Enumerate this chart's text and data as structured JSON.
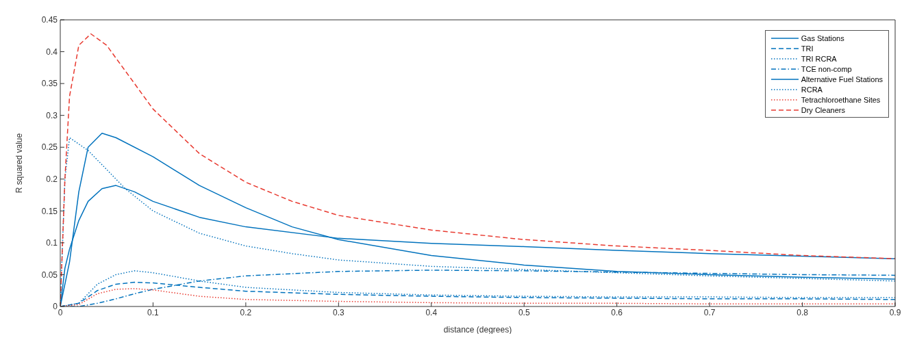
{
  "chart_data": {
    "type": "line",
    "xlabel": "distance (degrees)",
    "ylabel": "R squared value",
    "xlim": [
      0,
      0.9
    ],
    "xticks": [
      0,
      0.1,
      0.2,
      0.3,
      0.4,
      0.5,
      0.6,
      0.7,
      0.8,
      0.9
    ],
    "ylim": [
      0,
      0.45
    ],
    "yticks": [
      0,
      0.05,
      0.1,
      0.15,
      0.2,
      0.25,
      0.3,
      0.35,
      0.4,
      0.45
    ],
    "grid": false,
    "legend": "top right",
    "marker": "none",
    "series": [
      {
        "name": "Gas Stations",
        "color": "#0072bd",
        "line_style": "solid",
        "x": [
          0,
          0.01,
          0.02,
          0.03,
          0.045,
          0.06,
          0.1,
          0.15,
          0.2,
          0.25,
          0.3,
          0.4,
          0.5,
          0.6,
          0.7,
          0.8,
          0.9
        ],
        "values": [
          0,
          0.07,
          0.18,
          0.25,
          0.272,
          0.265,
          0.235,
          0.19,
          0.155,
          0.125,
          0.105,
          0.08,
          0.065,
          0.055,
          0.05,
          0.046,
          0.043
        ]
      },
      {
        "name": "TRI",
        "color": "#0072bd",
        "line_style": "dashed",
        "x": [
          0,
          0.02,
          0.04,
          0.06,
          0.08,
          0.1,
          0.15,
          0.2,
          0.3,
          0.4,
          0.5,
          0.6,
          0.7,
          0.8,
          0.9
        ],
        "values": [
          0,
          0.005,
          0.025,
          0.035,
          0.038,
          0.037,
          0.03,
          0.024,
          0.019,
          0.016,
          0.014,
          0.013,
          0.012,
          0.012,
          0.011
        ]
      },
      {
        "name": "TRI RCRA",
        "color": "#0072bd",
        "line_style": "dotted",
        "x": [
          0,
          0.02,
          0.04,
          0.06,
          0.08,
          0.1,
          0.15,
          0.2,
          0.3,
          0.4,
          0.5,
          0.6,
          0.7,
          0.8,
          0.9
        ],
        "values": [
          0,
          0.005,
          0.035,
          0.05,
          0.056,
          0.053,
          0.04,
          0.03,
          0.022,
          0.018,
          0.016,
          0.015,
          0.015,
          0.014,
          0.014
        ]
      },
      {
        "name": "TCE non-comp",
        "color": "#0072bd",
        "line_style": "dashdot",
        "x": [
          0,
          0.02,
          0.04,
          0.06,
          0.08,
          0.1,
          0.15,
          0.2,
          0.3,
          0.4,
          0.5,
          0.6,
          0.7,
          0.8,
          0.9
        ],
        "values": [
          0,
          0,
          0.005,
          0.012,
          0.02,
          0.027,
          0.04,
          0.048,
          0.055,
          0.057,
          0.056,
          0.054,
          0.052,
          0.05,
          0.049
        ]
      },
      {
        "name": "Alternative Fuel Stations",
        "color": "#0072bd",
        "line_style": "solid",
        "x": [
          0,
          0.005,
          0.01,
          0.02,
          0.03,
          0.045,
          0.06,
          0.08,
          0.1,
          0.15,
          0.2,
          0.3,
          0.4,
          0.5,
          0.6,
          0.7,
          0.8,
          0.9
        ],
        "values": [
          0,
          0.06,
          0.09,
          0.135,
          0.165,
          0.185,
          0.19,
          0.18,
          0.165,
          0.14,
          0.125,
          0.107,
          0.099,
          0.094,
          0.088,
          0.083,
          0.079,
          0.075
        ]
      },
      {
        "name": "RCRA",
        "color": "#0072bd",
        "line_style": "dotted",
        "x": [
          0,
          0.005,
          0.01,
          0.03,
          0.05,
          0.07,
          0.1,
          0.15,
          0.2,
          0.25,
          0.3,
          0.4,
          0.5,
          0.6,
          0.7,
          0.8,
          0.9
        ],
        "values": [
          0,
          0.2,
          0.265,
          0.245,
          0.215,
          0.185,
          0.15,
          0.115,
          0.095,
          0.083,
          0.073,
          0.063,
          0.058,
          0.053,
          0.048,
          0.044,
          0.04
        ]
      },
      {
        "name": "Tetrachloroethane Sites",
        "color": "#e8392f",
        "line_style": "dotted",
        "x": [
          0,
          0.02,
          0.04,
          0.06,
          0.08,
          0.1,
          0.15,
          0.2,
          0.3,
          0.4,
          0.5,
          0.6,
          0.7,
          0.8,
          0.9
        ],
        "values": [
          0,
          0.003,
          0.02,
          0.027,
          0.028,
          0.026,
          0.016,
          0.011,
          0.008,
          0.006,
          0.005,
          0.005,
          0.004,
          0.004,
          0.004
        ]
      },
      {
        "name": "Dry Cleaners",
        "color": "#e8392f",
        "line_style": "dashed",
        "x": [
          0,
          0.005,
          0.01,
          0.02,
          0.033,
          0.05,
          0.07,
          0.1,
          0.15,
          0.2,
          0.25,
          0.3,
          0.4,
          0.5,
          0.6,
          0.7,
          0.8,
          0.9
        ],
        "values": [
          0,
          0.2,
          0.33,
          0.41,
          0.428,
          0.41,
          0.37,
          0.31,
          0.24,
          0.195,
          0.165,
          0.143,
          0.12,
          0.105,
          0.095,
          0.088,
          0.08,
          0.075
        ]
      }
    ]
  }
}
